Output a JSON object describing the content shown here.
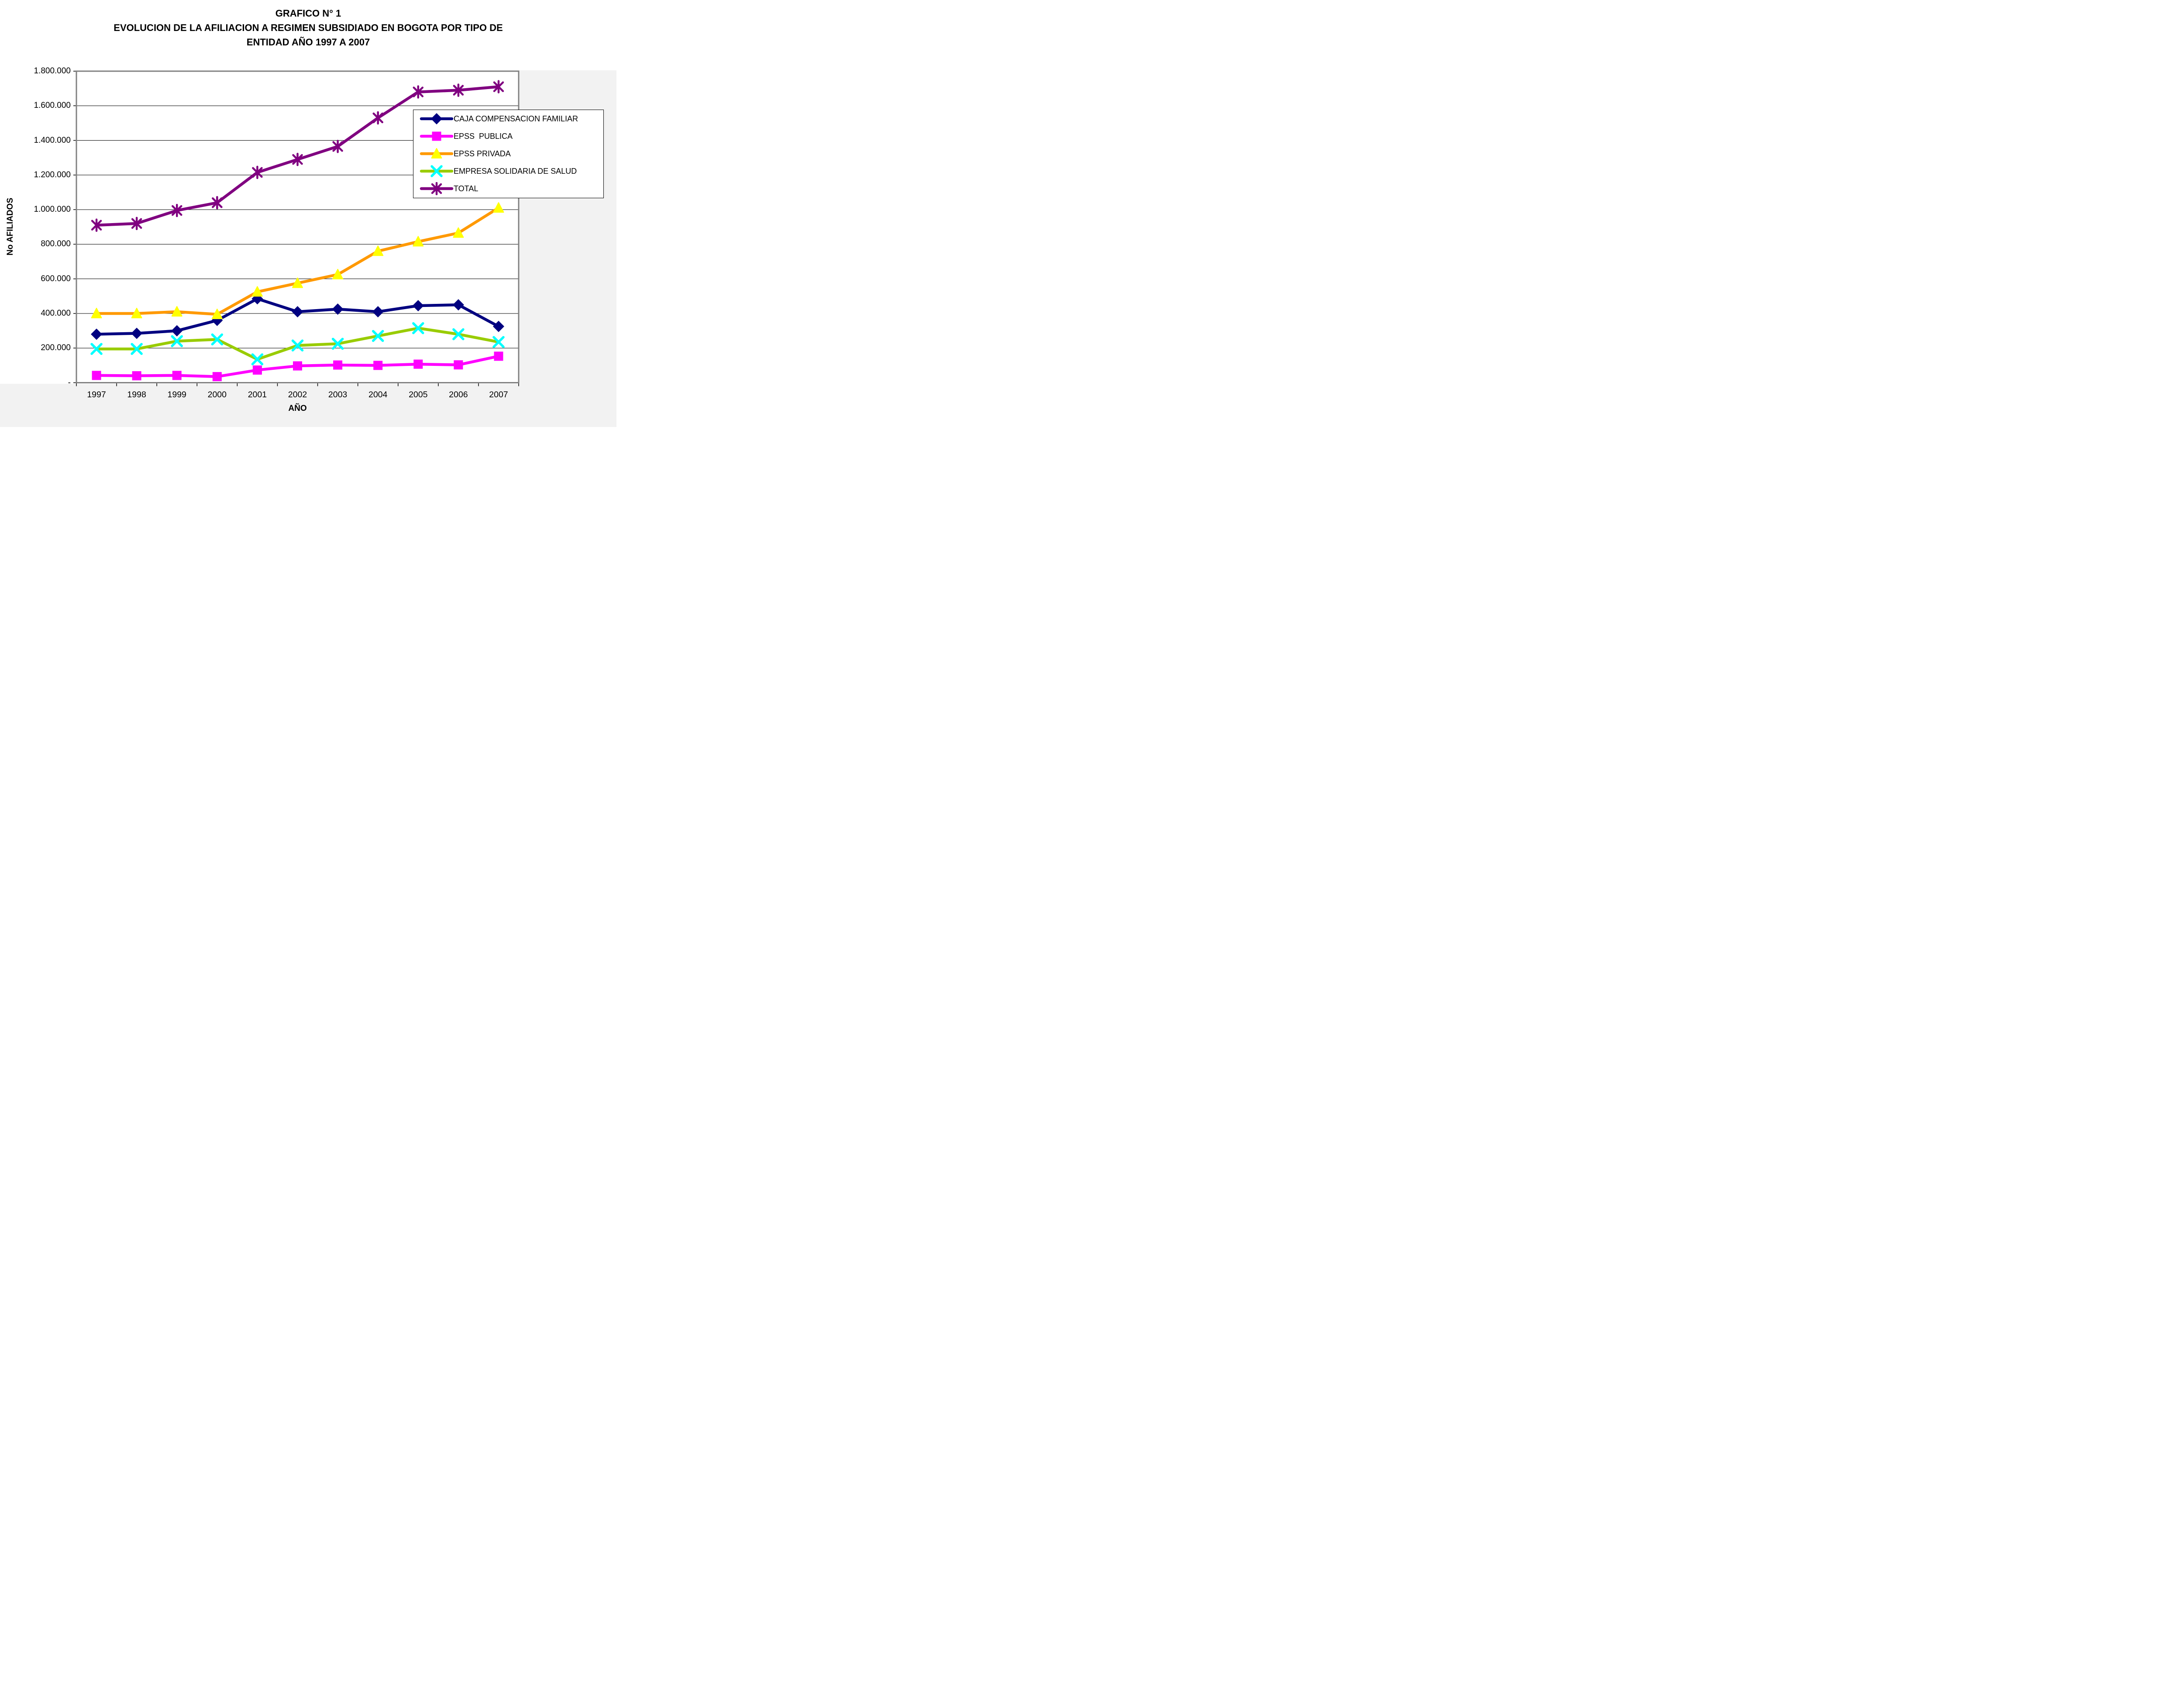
{
  "title": {
    "line1": "GRAFICO N° 1",
    "line2": "EVOLUCION DE LA AFILIACION A REGIMEN SUBSIDIADO EN BOGOTA POR TIPO DE",
    "line3": "ENTIDAD AÑO 1997 A 2007"
  },
  "chart_data": {
    "type": "line",
    "title": "GRAFICO N° 1 EVOLUCION DE LA AFILIACION A REGIMEN SUBSIDIADO EN BOGOTA POR TIPO DE ENTIDAD AÑO 1997 A 2007",
    "xlabel": "AÑO",
    "ylabel": "No AFILIADOS",
    "x": [
      "1997",
      "1998",
      "1999",
      "2000",
      "2001",
      "2002",
      "2003",
      "2004",
      "2005",
      "2006",
      "2007"
    ],
    "ylim": [
      0,
      1800000
    ],
    "y_tick_step": 200000,
    "y_tick_labels": [
      "1.800.000",
      "1.600.000",
      "1.400.000",
      "1.200.000",
      "1.000.000",
      "800.000",
      "600.000",
      "400.000",
      "200.000",
      "-"
    ],
    "y_tick_values": [
      1800000,
      1600000,
      1400000,
      1200000,
      1000000,
      800000,
      600000,
      400000,
      200000,
      0
    ],
    "grid": true,
    "legend_position": "inside-right",
    "series": [
      {
        "name": "CAJA COMPENSACION FAMILIAR",
        "color": "#000080",
        "marker": "diamond",
        "marker_color": "#000080",
        "values": [
          280000,
          285000,
          300000,
          360000,
          485000,
          410000,
          425000,
          410000,
          445000,
          450000,
          325000
        ]
      },
      {
        "name": "EPSS  PUBLICA",
        "color": "#ff00ff",
        "marker": "square",
        "marker_color": "#ff00ff",
        "values": [
          42000,
          40000,
          42000,
          35000,
          73000,
          97000,
          102000,
          100000,
          107000,
          103000,
          153000
        ]
      },
      {
        "name": "EPSS PRIVADA",
        "color": "#ff9900",
        "marker": "triangle",
        "marker_color": "#ffff00",
        "values": [
          400000,
          400000,
          410000,
          395000,
          525000,
          575000,
          625000,
          760000,
          815000,
          865000,
          1010000
        ]
      },
      {
        "name": "EMPRESA SOLIDARIA DE SALUD",
        "color": "#99cc00",
        "marker": "xmark",
        "marker_color": "#00ffff",
        "values": [
          195000,
          195000,
          240000,
          250000,
          135000,
          215000,
          225000,
          270000,
          315000,
          280000,
          235000
        ]
      },
      {
        "name": "TOTAL",
        "color": "#800080",
        "marker": "asterisk",
        "marker_color": "#800080",
        "values": [
          910000,
          920000,
          995000,
          1040000,
          1215000,
          1290000,
          1365000,
          1530000,
          1680000,
          1690000,
          1710000
        ]
      }
    ]
  },
  "colors": {
    "gridline": "#000000",
    "plot_border": "#808080",
    "outer_band": "#f2f2f2",
    "background": "#ffffff"
  }
}
